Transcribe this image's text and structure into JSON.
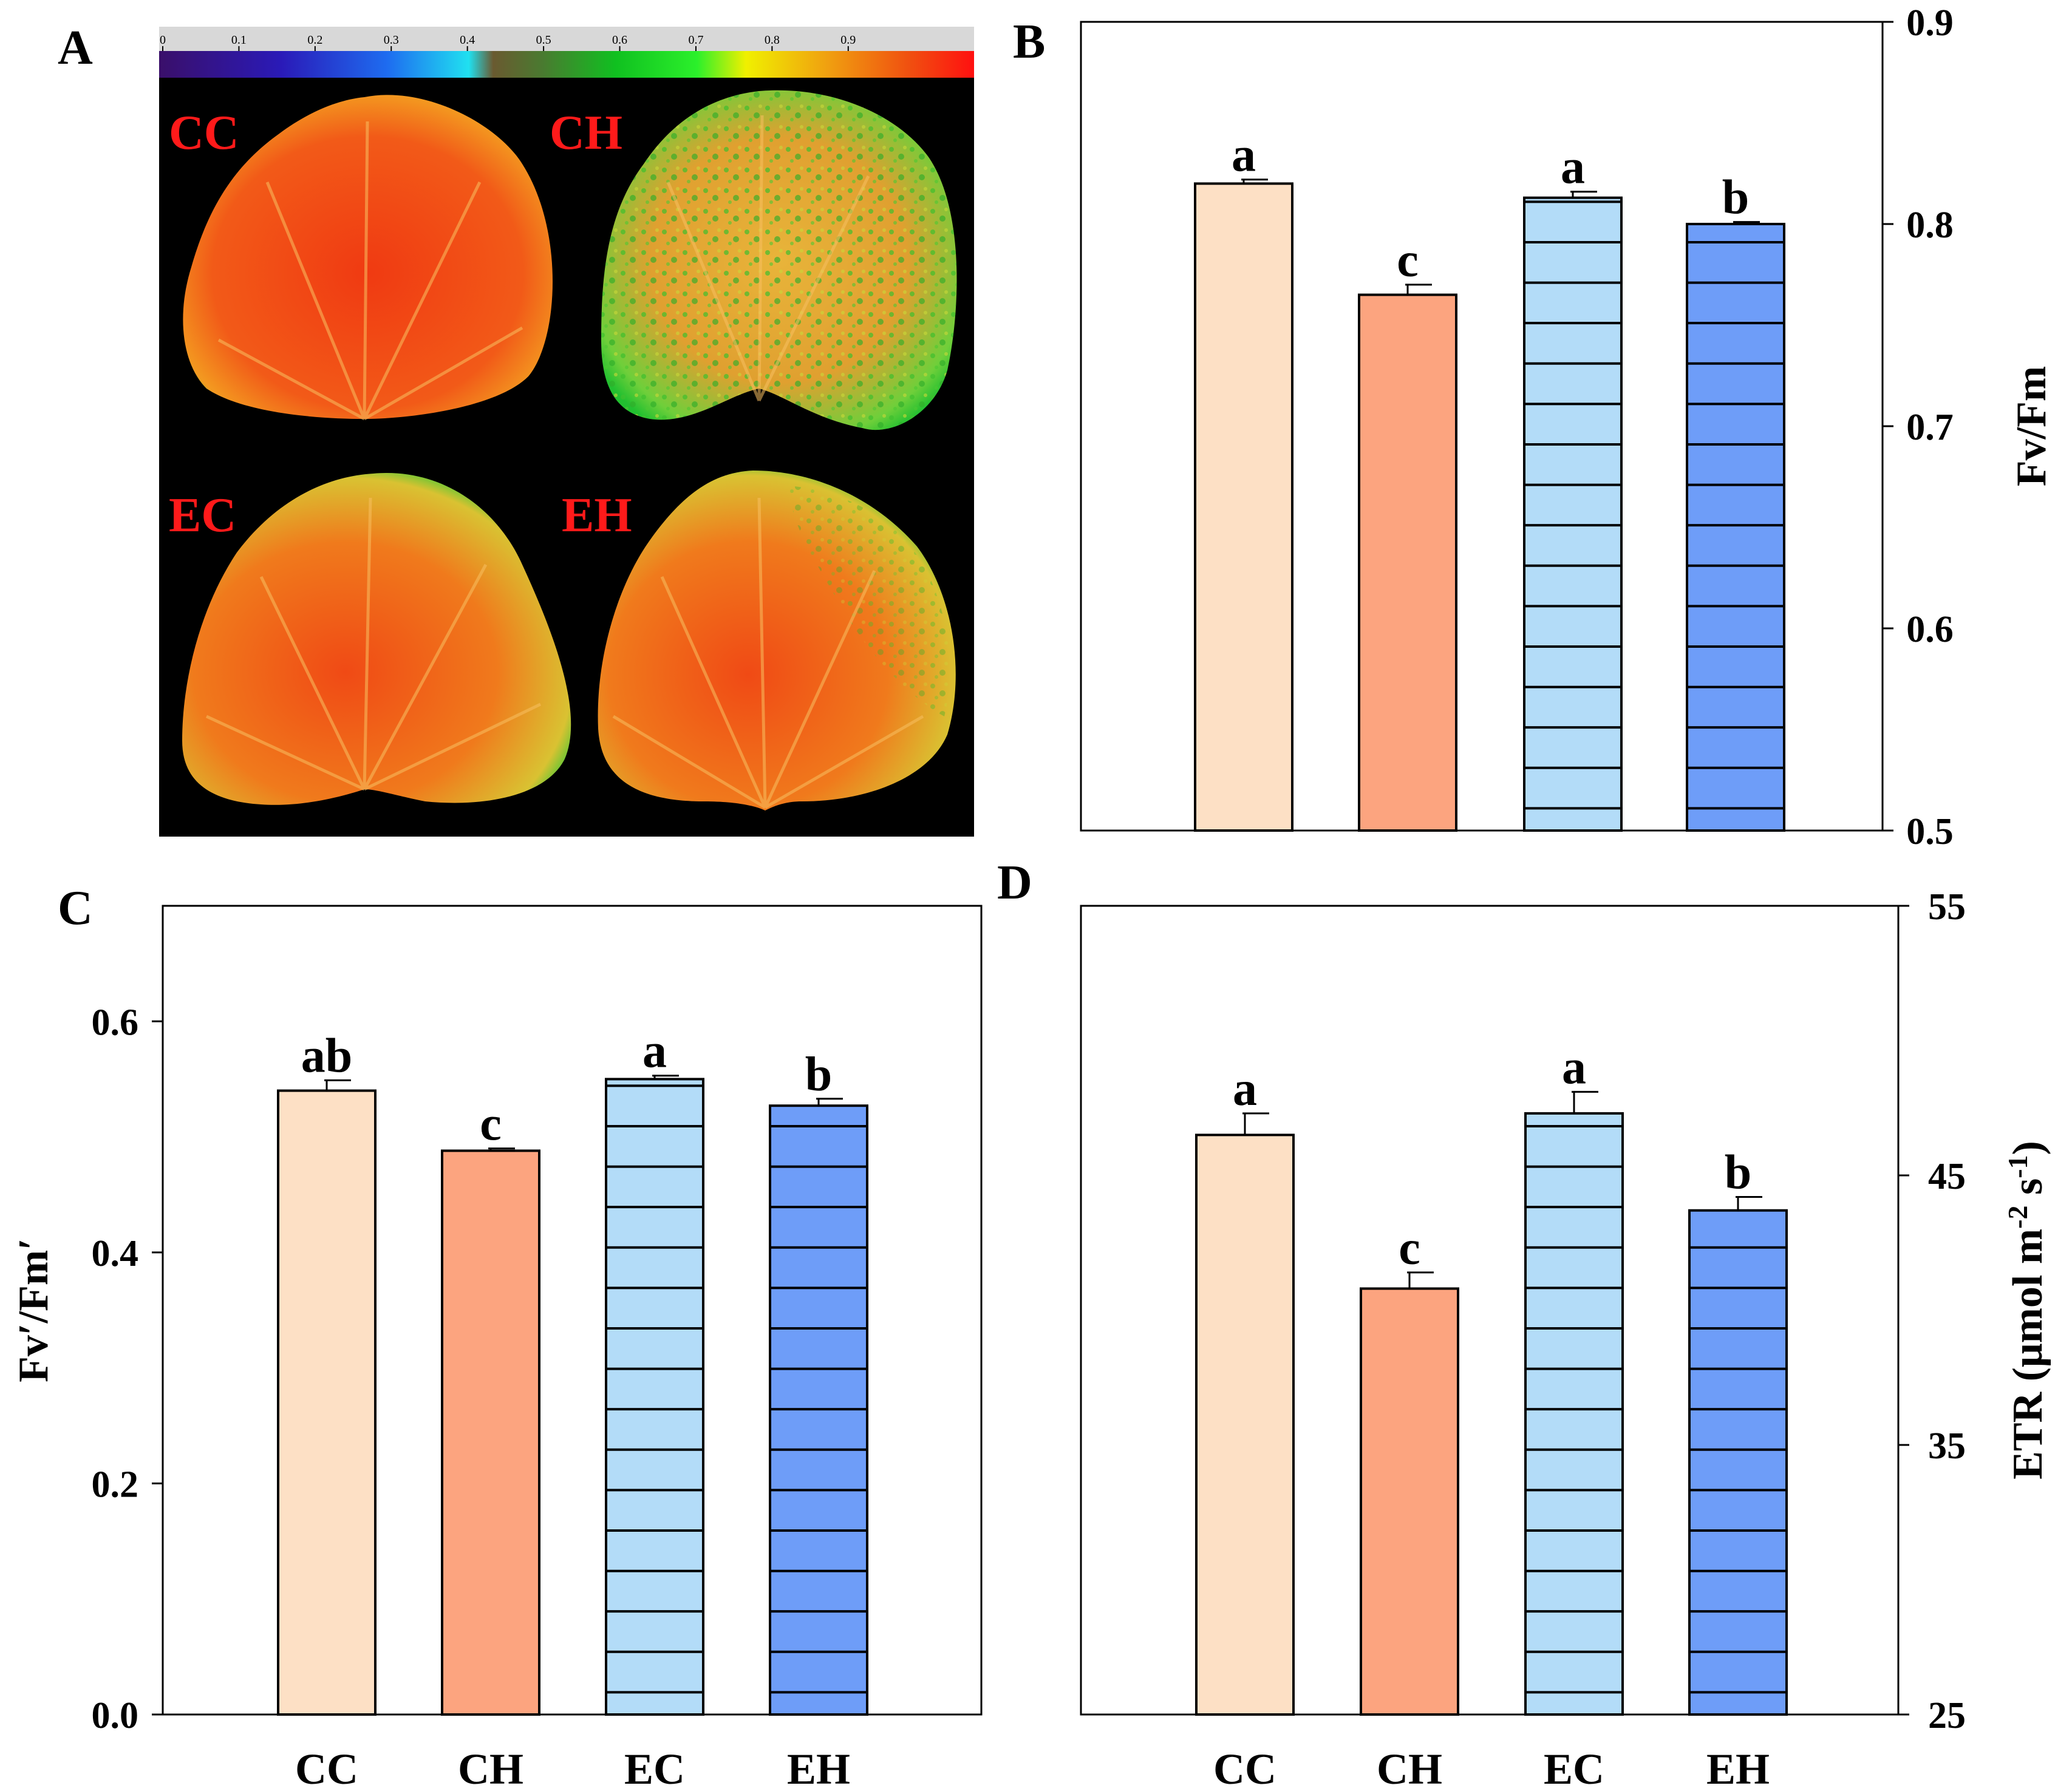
{
  "figure": {
    "panel_letters": [
      "A",
      "B",
      "C",
      "D"
    ],
    "colors": {
      "CC": "#fde0c5",
      "CH": "#fca47f",
      "EC": "#b3dcf8",
      "EH": "#6e9df8",
      "hatch": "#000000",
      "treatment_label": "#ff1a1a"
    }
  },
  "panel_a": {
    "letter": "A",
    "colorbar_ticks": [
      "0",
      "0.1",
      "0.2",
      "0.3",
      "0.4",
      "0.5",
      "0.6",
      "0.7",
      "0.8",
      "0.9"
    ],
    "leaf_labels": [
      "CC",
      "CH",
      "EC",
      "EH"
    ]
  },
  "chart_data": [
    {
      "panel": "B",
      "type": "bar",
      "categories": [
        "CC",
        "CH",
        "EC",
        "EH"
      ],
      "values": [
        0.82,
        0.765,
        0.813,
        0.8
      ],
      "errors": [
        0.002,
        0.005,
        0.003,
        0.001
      ],
      "significance": [
        "a",
        "c",
        "a",
        "b"
      ],
      "ylabel": "Fv/Fm",
      "ylim": [
        0.5,
        0.9
      ],
      "yticks": [
        0.5,
        0.6,
        0.7,
        0.8,
        0.9
      ],
      "ytick_labels": [
        "0.5",
        "0.6",
        "0.7",
        "0.8",
        "0.9"
      ],
      "y_axis_side": "right",
      "show_category_labels": false
    },
    {
      "panel": "C",
      "type": "bar",
      "categories": [
        "CC",
        "CH",
        "EC",
        "EH"
      ],
      "values": [
        0.54,
        0.488,
        0.55,
        0.527
      ],
      "errors": [
        0.009,
        0.002,
        0.003,
        0.006
      ],
      "significance": [
        "ab",
        "c",
        "a",
        "b"
      ],
      "ylabel": "Fv′/Fm′",
      "ylim": [
        0,
        0.7
      ],
      "yticks": [
        0,
        0.2,
        0.4,
        0.6
      ],
      "ytick_labels": [
        "0.0",
        "0.2",
        "0.4",
        "0.6"
      ],
      "y_axis_side": "left",
      "show_category_labels": true
    },
    {
      "panel": "D",
      "type": "bar",
      "categories": [
        "CC",
        "CH",
        "EC",
        "EH"
      ],
      "values": [
        46.5,
        40.8,
        47.3,
        43.7
      ],
      "errors": [
        0.8,
        0.6,
        0.8,
        0.5
      ],
      "significance": [
        "a",
        "c",
        "a",
        "b"
      ],
      "ylabel": "ETR (μmol m-2 s-1)",
      "ylabel_parts": {
        "pre": "ETR (μmol m",
        "sup1": "-2",
        "mid": " s",
        "sup2": "-1",
        "post": ")"
      },
      "ylim": [
        25,
        55
      ],
      "yticks": [
        25,
        35,
        45,
        55
      ],
      "ytick_labels": [
        "25",
        "35",
        "45",
        "55"
      ],
      "y_axis_side": "right",
      "show_category_labels": true
    }
  ]
}
